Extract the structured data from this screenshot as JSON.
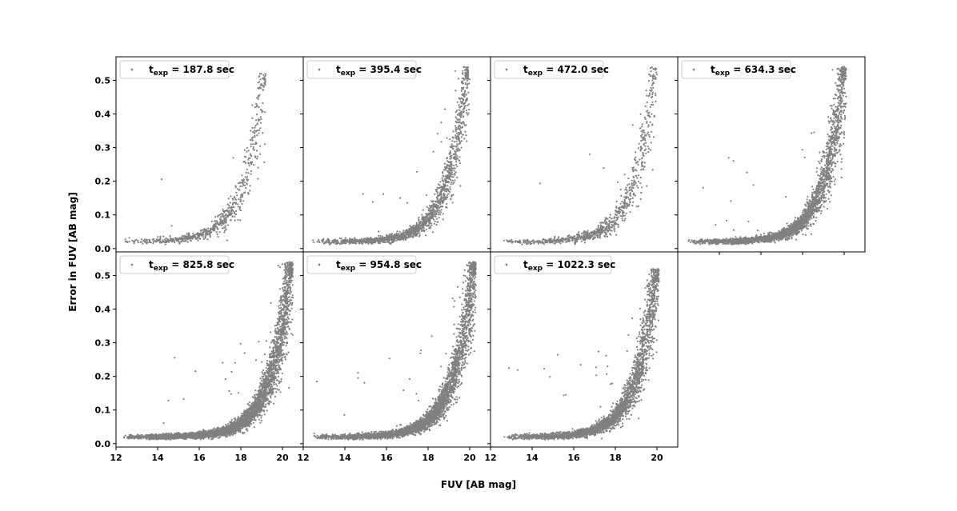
{
  "figure": {
    "xlabel": "FUV [AB mag]",
    "ylabel": "Error in FUV [AB mag]",
    "xticks": [
      "12",
      "14",
      "16",
      "18",
      "20"
    ],
    "yticks": [
      "0.0",
      "0.1",
      "0.2",
      "0.3",
      "0.4",
      "0.5"
    ],
    "marker_color": "#808080",
    "legend_prefix": "t",
    "legend_subscript": "exp"
  },
  "chart_data": [
    {
      "type": "scatter",
      "panel": "row1-col1",
      "legend": " = 187.8 sec",
      "n_points": 650,
      "xlim": [
        12,
        21
      ],
      "ylim": [
        -0.01,
        0.57
      ],
      "xmin_obs": 12.3,
      "xmax_obs": 19.2,
      "ymax_obs": 0.52
    },
    {
      "type": "scatter",
      "panel": "row1-col2",
      "legend": " = 395.4 sec",
      "n_points": 1600,
      "xlim": [
        12,
        21
      ],
      "ylim": [
        -0.01,
        0.57
      ],
      "xmin_obs": 12.4,
      "xmax_obs": 20.0,
      "ymax_obs": 0.54
    },
    {
      "type": "scatter",
      "panel": "row1-col3",
      "legend": " = 472.0 sec",
      "n_points": 800,
      "xlim": [
        12,
        21
      ],
      "ylim": [
        -0.01,
        0.57
      ],
      "xmin_obs": 12.4,
      "xmax_obs": 20.0,
      "ymax_obs": 0.54
    },
    {
      "type": "scatter",
      "panel": "row1-col4",
      "legend": " = 634.3 sec",
      "n_points": 2600,
      "xlim": [
        12,
        21
      ],
      "ylim": [
        -0.01,
        0.57
      ],
      "xmin_obs": 12.5,
      "xmax_obs": 20.1,
      "ymax_obs": 0.54
    },
    {
      "type": "scatter",
      "panel": "row2-col1",
      "legend": " = 825.8 sec",
      "n_points": 3800,
      "xlim": [
        12,
        21
      ],
      "ylim": [
        -0.01,
        0.57
      ],
      "xmin_obs": 12.3,
      "xmax_obs": 20.5,
      "ymax_obs": 0.54
    },
    {
      "type": "scatter",
      "panel": "row2-col2",
      "legend": " = 954.8 sec",
      "n_points": 3400,
      "xlim": [
        12,
        21
      ],
      "ylim": [
        -0.01,
        0.57
      ],
      "xmin_obs": 12.5,
      "xmax_obs": 20.3,
      "ymax_obs": 0.54
    },
    {
      "type": "scatter",
      "panel": "row2-col3",
      "legend": " = 1022.3 sec",
      "n_points": 2800,
      "xlim": [
        12,
        21
      ],
      "ylim": [
        -0.01,
        0.57
      ],
      "xmin_obs": 12.6,
      "xmax_obs": 20.1,
      "ymax_obs": 0.52
    }
  ]
}
